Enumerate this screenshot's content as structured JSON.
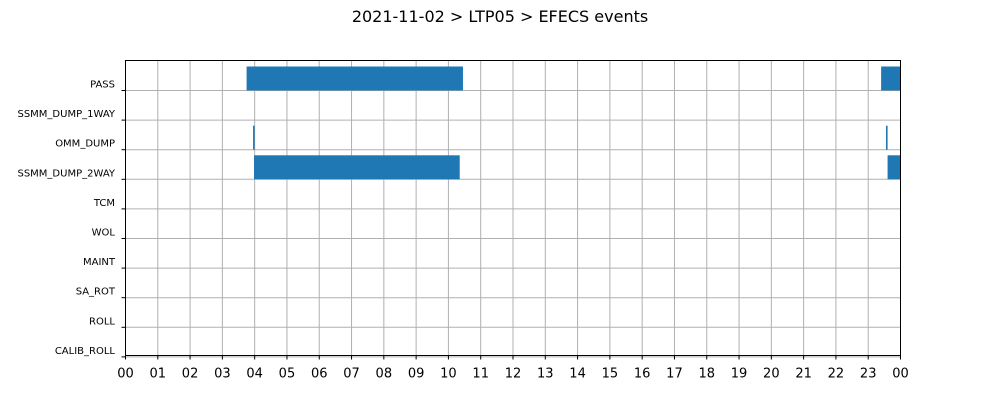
{
  "chart_data": {
    "type": "bar",
    "orientation": "horizontal",
    "title": "2021-11-02 > LTP05 > EFECS events",
    "xlabel": "",
    "ylabel": "",
    "x_unit": "hour",
    "xlim": [
      0,
      24
    ],
    "x_tick_labels": [
      "00",
      "01",
      "02",
      "03",
      "04",
      "05",
      "06",
      "07",
      "08",
      "09",
      "10",
      "11",
      "12",
      "13",
      "14",
      "15",
      "16",
      "17",
      "18",
      "19",
      "20",
      "21",
      "22",
      "23",
      "00"
    ],
    "categories": [
      "PASS",
      "SSMM_DUMP_1WAY",
      "OMM_DUMP",
      "SSMM_DUMP_2WAY",
      "TCM",
      "WOL",
      "MAINT",
      "SA_ROT",
      "ROLL",
      "CALIB_ROLL"
    ],
    "grid": true,
    "bar_color": "#1f77b4",
    "events": [
      {
        "category": "PASS",
        "start": 3.75,
        "end": 10.45
      },
      {
        "category": "PASS",
        "start": 23.4,
        "end": 24.0
      },
      {
        "category": "OMM_DUMP",
        "start": 3.95,
        "end": 4.0
      },
      {
        "category": "OMM_DUMP",
        "start": 23.55,
        "end": 23.6
      },
      {
        "category": "SSMM_DUMP_2WAY",
        "start": 3.98,
        "end": 10.35
      },
      {
        "category": "SSMM_DUMP_2WAY",
        "start": 23.6,
        "end": 24.0
      }
    ]
  }
}
